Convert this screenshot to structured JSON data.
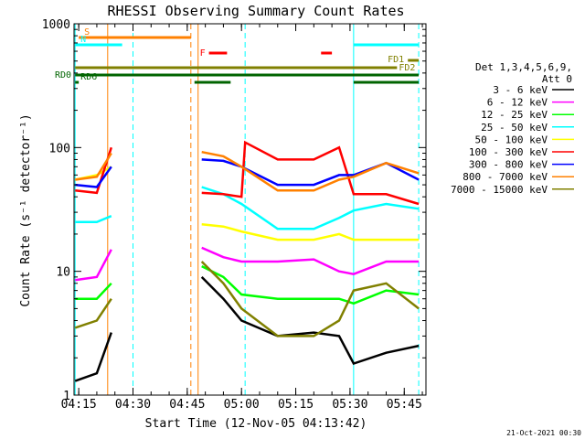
{
  "chart_data": {
    "type": "line",
    "title": "RHESSI Observing Summary Count Rates",
    "xlabel": "Start Time (12-Nov-05 04:13:42)",
    "ylabel": "Count Rate (s⁻¹ detector⁻¹)",
    "y_scale": "log",
    "ylim": [
      1,
      1000
    ],
    "xlim": [
      "04:13:42",
      "05:51:00"
    ],
    "x_ticks": [
      "04:15",
      "04:30",
      "04:45",
      "05:00",
      "05:15",
      "05:30",
      "05:45"
    ],
    "y_ticks": [
      "1",
      "10",
      "100",
      "1000"
    ],
    "legend_header": [
      "Det 1,3,4,5,6,9,",
      "Att 0"
    ],
    "legend_placement": "right",
    "footer_date": "21-Oct-2021 00:30",
    "series": [
      {
        "name": "3 - 6 keV",
        "color": "#000000",
        "points": [
          [
            "04:14",
            1.3
          ],
          [
            "04:20",
            1.5
          ],
          [
            "04:24",
            3.2
          ],
          [
            "04:49",
            9
          ],
          [
            "04:55",
            6
          ],
          [
            "05:00",
            4
          ],
          [
            "05:10",
            3
          ],
          [
            "05:20",
            3.2
          ],
          [
            "05:27",
            3
          ],
          [
            "05:31",
            1.8
          ],
          [
            "05:40",
            2.2
          ],
          [
            "05:49",
            2.5
          ]
        ]
      },
      {
        "name": "6 - 12 keV",
        "color": "#ff00ff",
        "points": [
          [
            "04:14",
            8.5
          ],
          [
            "04:20",
            9
          ],
          [
            "04:24",
            15
          ],
          [
            "04:49",
            15.5
          ],
          [
            "04:55",
            13
          ],
          [
            "05:00",
            12
          ],
          [
            "05:10",
            12
          ],
          [
            "05:20",
            12.5
          ],
          [
            "05:27",
            10
          ],
          [
            "05:31",
            9.5
          ],
          [
            "05:40",
            12
          ],
          [
            "05:49",
            12
          ]
        ]
      },
      {
        "name": "12 - 25 keV",
        "color": "#00ff00",
        "points": [
          [
            "04:14",
            6
          ],
          [
            "04:20",
            6
          ],
          [
            "04:24",
            8
          ],
          [
            "04:49",
            11
          ],
          [
            "04:55",
            9
          ],
          [
            "05:00",
            6.5
          ],
          [
            "05:10",
            6
          ],
          [
            "05:20",
            6
          ],
          [
            "05:27",
            6
          ],
          [
            "05:31",
            5.5
          ],
          [
            "05:40",
            7
          ],
          [
            "05:49",
            6.5
          ]
        ]
      },
      {
        "name": "25 - 50 keV",
        "color": "#00ffff",
        "points": [
          [
            "04:14",
            25
          ],
          [
            "04:20",
            25
          ],
          [
            "04:24",
            28
          ],
          [
            "04:49",
            48
          ],
          [
            "04:55",
            42
          ],
          [
            "05:00",
            35
          ],
          [
            "05:10",
            22
          ],
          [
            "05:20",
            22
          ],
          [
            "05:27",
            27
          ],
          [
            "05:31",
            31
          ],
          [
            "05:40",
            35
          ],
          [
            "05:49",
            32
          ]
        ]
      },
      {
        "name": "50 - 100 keV",
        "color": "#ffff00",
        "points": [
          [
            "04:14",
            55
          ],
          [
            "04:20",
            60
          ],
          [
            "04:24",
            70
          ],
          [
            "04:49",
            24
          ],
          [
            "04:55",
            23
          ],
          [
            "05:00",
            21
          ],
          [
            "05:10",
            18
          ],
          [
            "05:20",
            18
          ],
          [
            "05:27",
            20
          ],
          [
            "05:31",
            18
          ],
          [
            "05:40",
            18
          ],
          [
            "05:49",
            18
          ]
        ]
      },
      {
        "name": "100 - 300 keV",
        "color": "#ff0000",
        "points": [
          [
            "04:14",
            45
          ],
          [
            "04:20",
            43
          ],
          [
            "04:24",
            100
          ],
          [
            "04:49",
            43
          ],
          [
            "04:55",
            42
          ],
          [
            "05:00",
            40
          ],
          [
            "05:01",
            110
          ],
          [
            "05:10",
            80
          ],
          [
            "05:20",
            80
          ],
          [
            "05:27",
            100
          ],
          [
            "05:31",
            42
          ],
          [
            "05:40",
            42
          ],
          [
            "05:49",
            35
          ]
        ]
      },
      {
        "name": "300 - 800 keV",
        "color": "#0000ff",
        "points": [
          [
            "04:14",
            50
          ],
          [
            "04:20",
            48
          ],
          [
            "04:24",
            70
          ],
          [
            "04:49",
            80
          ],
          [
            "04:55",
            78
          ],
          [
            "05:00",
            70
          ],
          [
            "05:10",
            50
          ],
          [
            "05:20",
            50
          ],
          [
            "05:27",
            60
          ],
          [
            "05:31",
            60
          ],
          [
            "05:40",
            75
          ],
          [
            "05:49",
            55
          ]
        ]
      },
      {
        "name": "800 - 7000 keV",
        "color": "#ff8000",
        "points": [
          [
            "04:14",
            55
          ],
          [
            "04:20",
            58
          ],
          [
            "04:24",
            90
          ],
          [
            "04:49",
            92
          ],
          [
            "04:55",
            85
          ],
          [
            "05:00",
            70
          ],
          [
            "05:10",
            45
          ],
          [
            "05:20",
            45
          ],
          [
            "05:27",
            55
          ],
          [
            "05:31",
            58
          ],
          [
            "05:40",
            75
          ],
          [
            "05:49",
            62
          ]
        ]
      },
      {
        "name": "7000 - 15000 keV",
        "color": "#808000",
        "points": [
          [
            "04:14",
            3.5
          ],
          [
            "04:20",
            4
          ],
          [
            "04:24",
            6
          ],
          [
            "04:49",
            12
          ],
          [
            "04:55",
            8
          ],
          [
            "05:00",
            5
          ],
          [
            "05:10",
            3
          ],
          [
            "05:20",
            3
          ],
          [
            "05:27",
            4
          ],
          [
            "05:31",
            7
          ],
          [
            "05:40",
            8
          ],
          [
            "05:49",
            5
          ]
        ]
      }
    ],
    "flag_bars": [
      {
        "label": "S",
        "color": "#ff8000",
        "start": "04:15",
        "end": "04:46"
      },
      {
        "label": "N",
        "color": "#00ffff",
        "start": "04:14",
        "end": "04:27"
      },
      {
        "label": "N",
        "color": "#00ffff",
        "start": "05:31",
        "end": "05:49"
      },
      {
        "label": "F",
        "color": "#ff0000",
        "start": "04:51",
        "end": "04:56"
      },
      {
        "label": "F",
        "color": "#ff0000",
        "start": "05:22",
        "end": "05:25"
      },
      {
        "label": "FD1",
        "color": "#808000",
        "start": "05:46",
        "end": "05:49"
      },
      {
        "label": "FD2",
        "color": "#808000",
        "start": "04:14",
        "end": "05:43"
      },
      {
        "label": "RD0",
        "color": "#006400",
        "start": "04:14",
        "end": "05:49"
      },
      {
        "label": "RD6",
        "color": "#006400",
        "start": "04:14",
        "end": "04:15"
      },
      {
        "label": "RD6",
        "color": "#006400",
        "start": "04:47",
        "end": "04:57"
      },
      {
        "label": "RD6",
        "color": "#006400",
        "start": "05:31",
        "end": "05:49"
      }
    ],
    "markers": [
      {
        "time": "04:23",
        "color": "#ff8000",
        "style": "solid"
      },
      {
        "time": "04:14",
        "color": "#00ffff",
        "style": "solid"
      },
      {
        "time": "04:30",
        "color": "#00ffff",
        "style": "dashed"
      },
      {
        "time": "04:46",
        "color": "#ff8000",
        "style": "dashed"
      },
      {
        "time": "04:48",
        "color": "#ff8000",
        "style": "solid"
      },
      {
        "time": "05:01",
        "color": "#00ffff",
        "style": "dashed"
      },
      {
        "time": "05:31",
        "color": "#00ffff",
        "style": "solid"
      },
      {
        "time": "05:49",
        "color": "#00ffff",
        "style": "dashed"
      }
    ],
    "gaps": [
      [
        "04:24",
        "04:48"
      ]
    ]
  }
}
